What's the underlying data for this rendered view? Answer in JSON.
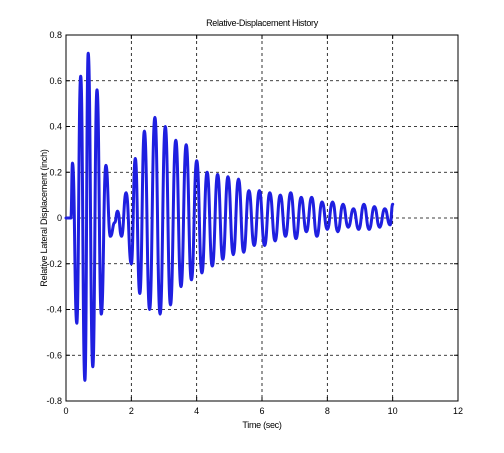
{
  "colors": {
    "line": "#1f1fe0",
    "axis": "#000000",
    "grid": "#000000",
    "background": "#ffffff"
  },
  "chart_data": {
    "type": "line",
    "title": "Relative-Displacement History",
    "xlabel": "Time (sec)",
    "ylabel": "Relative Lateral Displacement (inch)",
    "xlim": [
      0,
      12
    ],
    "ylim": [
      -0.8,
      0.8
    ],
    "xticks": [
      0,
      2,
      4,
      6,
      8,
      10,
      12
    ],
    "yticks": [
      -0.8,
      -0.6,
      -0.4,
      -0.2,
      0,
      0.2,
      0.4,
      0.6,
      0.8
    ],
    "grid": true,
    "series": [
      {
        "x": [
          0.0,
          0.15,
          0.2,
          0.33,
          0.45,
          0.58,
          0.68,
          0.82,
          0.95,
          1.08,
          1.22,
          1.36,
          1.49,
          1.58,
          1.7,
          1.84,
          2.0,
          2.12,
          2.26,
          2.4,
          2.56,
          2.72,
          2.88,
          3.04,
          3.2,
          3.36,
          3.52,
          3.68,
          3.84,
          4.0,
          4.16,
          4.32,
          4.48,
          4.64,
          4.8,
          4.96,
          5.12,
          5.28,
          5.44,
          5.6,
          5.76,
          5.92,
          6.08,
          6.24,
          6.4,
          6.56,
          6.72,
          6.88,
          7.04,
          7.2,
          7.36,
          7.52,
          7.68,
          7.84,
          8.0,
          8.16,
          8.32,
          8.48,
          8.64,
          8.8,
          8.96,
          9.12,
          9.28,
          9.44,
          9.6,
          9.76,
          9.92,
          10.0
        ],
        "y": [
          0.0,
          0.0,
          0.24,
          -0.46,
          0.62,
          -0.71,
          0.72,
          -0.65,
          0.56,
          -0.42,
          0.23,
          -0.08,
          -0.02,
          0.03,
          -0.08,
          0.11,
          -0.2,
          0.26,
          -0.33,
          0.38,
          -0.4,
          0.44,
          -0.42,
          0.4,
          -0.38,
          0.34,
          -0.3,
          0.32,
          -0.27,
          0.25,
          -0.24,
          0.2,
          -0.21,
          0.19,
          -0.18,
          0.18,
          -0.16,
          0.17,
          -0.15,
          0.12,
          -0.12,
          0.12,
          -0.12,
          0.11,
          -0.1,
          0.1,
          -0.08,
          0.11,
          -0.09,
          0.09,
          -0.06,
          0.09,
          -0.08,
          0.07,
          -0.05,
          0.07,
          -0.06,
          0.06,
          -0.04,
          0.04,
          -0.05,
          0.06,
          -0.05,
          0.05,
          -0.04,
          0.04,
          -0.03,
          0.06
        ]
      }
    ]
  }
}
